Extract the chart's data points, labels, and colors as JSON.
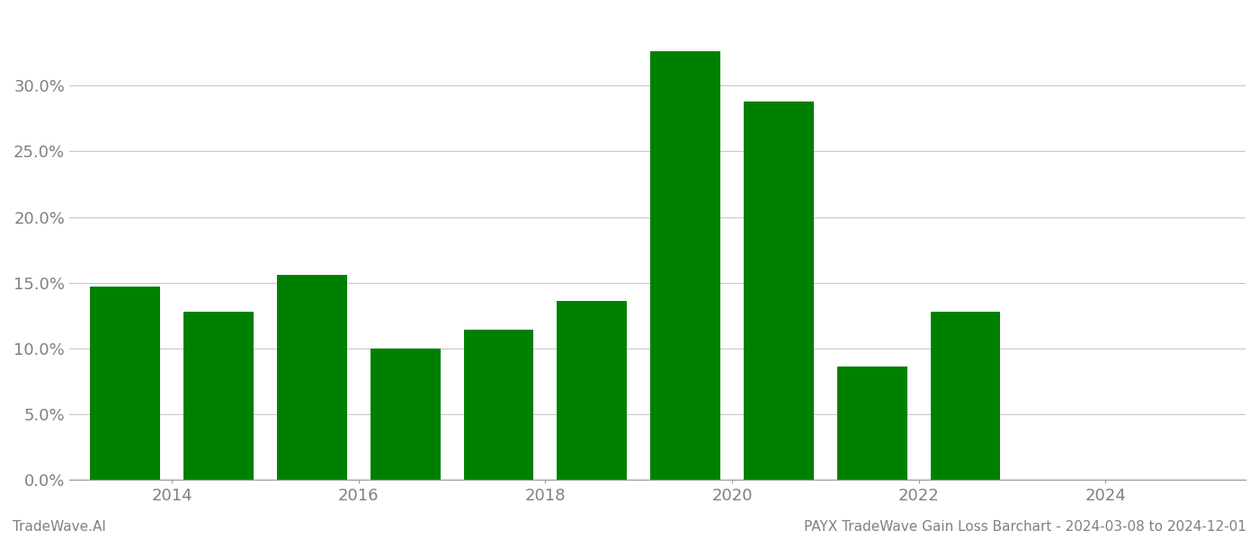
{
  "bar_years": [
    2013,
    2014,
    2015,
    2016,
    2017,
    2018,
    2019,
    2020,
    2021,
    2022,
    2023
  ],
  "values": [
    0.147,
    0.128,
    0.156,
    0.1,
    0.114,
    0.136,
    0.326,
    0.288,
    0.086,
    0.128,
    0.0
  ],
  "bar_color": "#008000",
  "background_color": "#ffffff",
  "tick_label_color": "#808080",
  "grid_color": "#c8c8c8",
  "xtick_positions": [
    2013.5,
    2015.5,
    2017.5,
    2019.5,
    2021.5,
    2023.5
  ],
  "xtick_labels": [
    "2014",
    "2016",
    "2018",
    "2020",
    "2022",
    "2024"
  ],
  "xlim": [
    2012.4,
    2025.0
  ],
  "ylim": [
    0.0,
    0.355
  ],
  "yticks": [
    0.0,
    0.05,
    0.1,
    0.15,
    0.2,
    0.25,
    0.3
  ],
  "bar_width": 0.75,
  "footer_left": "TradeWave.AI",
  "footer_right": "PAYX TradeWave Gain Loss Barchart - 2024-03-08 to 2024-12-01",
  "footer_color": "#808080",
  "footer_fontsize": 11
}
